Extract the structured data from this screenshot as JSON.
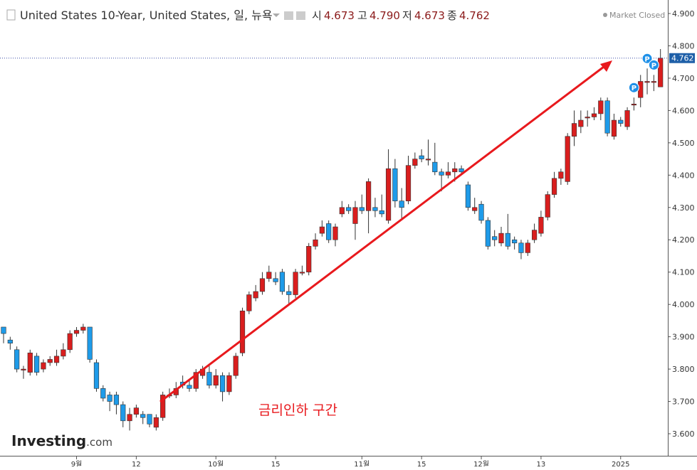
{
  "header": {
    "symbol": "United States 10-Year, United States, 일, 뉴욕",
    "open_label": "시",
    "open": "4.673",
    "high_label": "고",
    "high": "4.790",
    "low_label": "저",
    "low": "4.673",
    "close_label": "종",
    "close": "4.762",
    "status": "Market Closed",
    "logo": "Investing",
    "logo_suffix": ".com"
  },
  "chart_data": {
    "type": "candlestick",
    "annotation": "금리인하 구간",
    "up_color": "#d91e1e",
    "down_color": "#1e9be9",
    "last_price": 4.762,
    "markers": [
      {
        "index": 95,
        "label": "P"
      },
      {
        "index": 97,
        "label": "P"
      },
      {
        "index": 98,
        "label": "P"
      }
    ],
    "categories": [
      null,
      null,
      null,
      null,
      null,
      null,
      null,
      null,
      null,
      null,
      null,
      "9월",
      null,
      null,
      null,
      null,
      null,
      null,
      null,
      null,
      "12",
      null,
      null,
      null,
      null,
      null,
      null,
      null,
      null,
      null,
      null,
      null,
      "10월",
      null,
      null,
      null,
      null,
      null,
      null,
      null,
      null,
      "15",
      null,
      null,
      null,
      null,
      null,
      null,
      null,
      null,
      null,
      null,
      null,
      null,
      "11월",
      null,
      null,
      null,
      null,
      null,
      null,
      null,
      null,
      "15",
      null,
      null,
      null,
      null,
      null,
      null,
      null,
      null,
      "12월",
      null,
      null,
      null,
      null,
      null,
      null,
      null,
      null,
      "13",
      null,
      null,
      null,
      null,
      null,
      null,
      null,
      null,
      null,
      null,
      null,
      "2025",
      null,
      null,
      null,
      null,
      null,
      null
    ],
    "open": [
      3.93,
      3.89,
      3.86,
      3.8,
      3.79,
      3.84,
      3.8,
      3.82,
      3.82,
      3.84,
      3.86,
      3.91,
      3.92,
      3.93,
      3.82,
      3.74,
      3.72,
      3.72,
      3.69,
      3.64,
      3.66,
      3.66,
      3.66,
      3.62,
      3.65,
      3.72,
      3.72,
      3.76,
      3.75,
      3.74,
      3.78,
      3.79,
      3.75,
      3.78,
      3.73,
      3.78,
      3.85,
      3.98,
      4.02,
      4.04,
      4.08,
      4.08,
      4.1,
      4.04,
      4.03,
      4.1,
      4.1,
      4.18,
      4.22,
      4.25,
      4.2,
      4.28,
      4.3,
      4.25,
      4.3,
      4.29,
      4.3,
      4.29,
      4.26,
      4.42,
      4.32,
      4.32,
      4.43,
      4.46,
      4.45,
      4.44,
      4.41,
      4.4,
      4.41,
      4.42,
      4.37,
      4.29,
      4.31,
      4.26,
      4.21,
      4.19,
      4.22,
      4.2,
      4.19,
      4.16,
      4.2,
      4.22,
      4.27,
      4.34,
      4.39,
      4.38,
      4.52,
      4.55,
      4.58,
      4.58,
      4.59,
      4.63,
      4.52,
      4.57,
      4.55,
      4.62,
      4.64,
      4.69,
      4.69,
      4.673
    ],
    "high": [
      3.93,
      3.9,
      3.87,
      3.81,
      3.86,
      3.85,
      3.83,
      3.84,
      3.86,
      3.88,
      3.92,
      3.93,
      3.94,
      3.93,
      3.83,
      3.75,
      3.73,
      3.73,
      3.7,
      3.68,
      3.69,
      3.67,
      3.66,
      3.66,
      3.73,
      3.74,
      3.76,
      3.78,
      3.77,
      3.8,
      3.81,
      3.81,
      3.8,
      3.79,
      3.79,
      3.85,
      3.99,
      4.04,
      4.06,
      4.1,
      4.12,
      4.1,
      4.11,
      4.06,
      4.11,
      4.12,
      4.19,
      4.22,
      4.26,
      4.26,
      4.25,
      4.32,
      4.31,
      4.32,
      4.34,
      4.39,
      4.33,
      4.34,
      4.48,
      4.45,
      4.36,
      4.46,
      4.47,
      4.48,
      4.51,
      4.5,
      4.42,
      4.44,
      4.44,
      4.43,
      4.38,
      4.33,
      4.32,
      4.27,
      4.23,
      4.24,
      4.28,
      4.21,
      4.2,
      4.2,
      4.25,
      4.29,
      4.35,
      4.41,
      4.42,
      4.53,
      4.6,
      4.6,
      4.6,
      4.61,
      4.64,
      4.64,
      4.59,
      4.58,
      4.61,
      4.64,
      4.71,
      4.73,
      4.71,
      4.79
    ],
    "low": [
      3.88,
      3.86,
      3.79,
      3.77,
      3.78,
      3.78,
      3.79,
      3.81,
      3.81,
      3.83,
      3.85,
      3.9,
      3.91,
      3.82,
      3.73,
      3.7,
      3.67,
      3.66,
      3.62,
      3.61,
      3.65,
      3.63,
      3.62,
      3.61,
      3.64,
      3.71,
      3.71,
      3.74,
      3.73,
      3.73,
      3.77,
      3.74,
      3.74,
      3.7,
      3.72,
      3.77,
      3.84,
      3.97,
      4.01,
      4.03,
      4.07,
      4.06,
      4.03,
      4.0,
      4.02,
      4.09,
      4.09,
      4.17,
      4.21,
      4.19,
      4.18,
      4.27,
      4.28,
      4.2,
      4.28,
      4.22,
      4.27,
      4.27,
      4.25,
      4.3,
      4.26,
      4.31,
      4.42,
      4.44,
      4.43,
      4.4,
      4.35,
      4.39,
      4.38,
      4.4,
      4.29,
      4.28,
      4.25,
      4.17,
      4.18,
      4.18,
      4.17,
      4.17,
      4.14,
      4.15,
      4.19,
      4.21,
      4.26,
      4.33,
      4.37,
      4.37,
      4.49,
      4.53,
      4.55,
      4.57,
      4.57,
      4.52,
      4.51,
      4.55,
      4.54,
      4.6,
      4.61,
      4.65,
      4.66,
      4.673
    ],
    "close": [
      3.91,
      3.88,
      3.8,
      3.8,
      3.85,
      3.79,
      3.82,
      3.83,
      3.84,
      3.86,
      3.91,
      3.92,
      3.93,
      3.83,
      3.74,
      3.71,
      3.7,
      3.69,
      3.64,
      3.66,
      3.68,
      3.65,
      3.63,
      3.65,
      3.72,
      3.72,
      3.74,
      3.75,
      3.74,
      3.79,
      3.8,
      3.75,
      3.78,
      3.73,
      3.78,
      3.84,
      3.98,
      4.03,
      4.04,
      4.08,
      4.1,
      4.07,
      4.04,
      4.03,
      4.1,
      4.1,
      4.18,
      4.2,
      4.24,
      4.2,
      4.24,
      4.3,
      4.29,
      4.3,
      4.29,
      4.38,
      4.29,
      4.28,
      4.42,
      4.32,
      4.3,
      4.43,
      4.45,
      4.45,
      4.45,
      4.41,
      4.4,
      4.41,
      4.42,
      4.41,
      4.3,
      4.3,
      4.26,
      4.18,
      4.2,
      4.22,
      4.18,
      4.19,
      4.16,
      4.19,
      4.23,
      4.27,
      4.34,
      4.39,
      4.41,
      4.52,
      4.56,
      4.57,
      4.58,
      4.59,
      4.63,
      4.53,
      4.57,
      4.56,
      4.6,
      4.62,
      4.69,
      4.69,
      4.69,
      4.762
    ],
    "ylim": [
      3.6,
      4.9
    ],
    "yticks": [
      {
        "value": 3.6,
        "label": "3.600"
      },
      {
        "value": 3.7,
        "label": "3.700"
      },
      {
        "value": 3.8,
        "label": "3.800"
      },
      {
        "value": 3.9,
        "label": "3.900"
      },
      {
        "value": 4.0,
        "label": "4.000"
      },
      {
        "value": 4.1,
        "label": "4.100"
      },
      {
        "value": 4.2,
        "label": "4.200"
      },
      {
        "value": 4.3,
        "label": "4.300"
      },
      {
        "value": 4.4,
        "label": "4.400"
      },
      {
        "value": 4.5,
        "label": "4.500"
      },
      {
        "value": 4.6,
        "label": "4.600"
      },
      {
        "value": 4.7,
        "label": "4.700"
      },
      {
        "value": 4.8,
        "label": "4.800"
      },
      {
        "value": 4.9,
        "label": "4.900"
      }
    ]
  }
}
